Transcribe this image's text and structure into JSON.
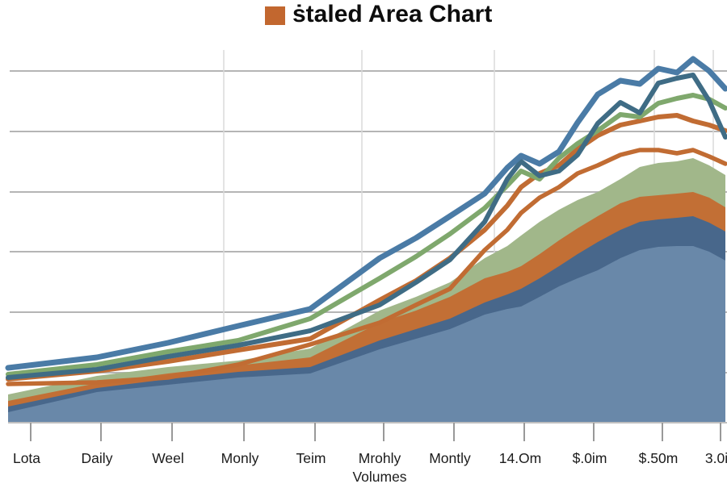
{
  "title": {
    "text": "ṡtaled Area Chart",
    "legend_swatch_color": "#c2672f"
  },
  "x_axis": {
    "axis_title": "Volumes",
    "tick_labels": [
      "Lota",
      "Daily",
      "Weel",
      "Monly",
      "Teim",
      "Mrohly",
      "Montly",
      "14.Om",
      "$.0im",
      "$.50m",
      "3.0i"
    ],
    "tick_x": [
      33,
      120,
      208,
      297,
      385,
      470,
      557,
      644,
      730,
      815,
      887
    ]
  },
  "chart_data": {
    "type": "area",
    "subtype": "stacked-area-with-line-overlays",
    "title": "ṡtaled Area Chart",
    "xlabel": "Volumes",
    "ylabel": "",
    "legend_position": "top-center",
    "grid": "horizontal",
    "x_tick_labels": [
      "Lota",
      "Daily",
      "Weel",
      "Monly",
      "Teim",
      "Mrohly",
      "Montly",
      "14.Om",
      "$.0im",
      "$.50m",
      "3.0i"
    ],
    "xlim": [
      0,
      900
    ],
    "ylim": [
      0,
      470
    ],
    "x": [
      10,
      120,
      208,
      295,
      384,
      470,
      515,
      557,
      600,
      628,
      645,
      668,
      692,
      715,
      740,
      768,
      792,
      815,
      838,
      858,
      878,
      898
    ],
    "stacked_areas": [
      {
        "name": "steel-blue-base-area",
        "color": "#6988a9",
        "stack_top_values": [
          12,
          37,
          46,
          55,
          60,
          90,
          103,
          115,
          133,
          140,
          143,
          155,
          168,
          178,
          188,
          203,
          213,
          217,
          218,
          218,
          211,
          200
        ]
      },
      {
        "name": "dark-blue-band",
        "color": "#48678b",
        "stack_top_values": [
          19,
          42,
          53,
          62,
          68,
          101,
          115,
          128,
          148,
          158,
          165,
          178,
          193,
          208,
          223,
          238,
          248,
          251,
          253,
          255,
          247,
          236
        ]
      },
      {
        "name": "orange-band",
        "color": "#c26f35",
        "stack_top_values": [
          26,
          48,
          60,
          70,
          80,
          123,
          138,
          155,
          178,
          186,
          193,
          208,
          225,
          240,
          255,
          271,
          279,
          281,
          283,
          285,
          278,
          266
        ]
      },
      {
        "name": "green-band",
        "color": "#a1b78a",
        "stack_top_values": [
          34,
          57,
          68,
          76,
          91,
          138,
          155,
          173,
          203,
          218,
          231,
          248,
          263,
          275,
          285,
          301,
          316,
          321,
          323,
          327,
          318,
          306
        ]
      }
    ],
    "lines": [
      {
        "name": "orange-line-lower",
        "color": "#c16c33",
        "width": 5.5,
        "values": [
          47,
          49,
          55,
          71,
          96,
          123,
          145,
          165,
          213,
          238,
          259,
          278,
          291,
          308,
          318,
          331,
          337,
          337,
          333,
          337,
          329,
          320
        ]
      },
      {
        "name": "orange-line-upper",
        "color": "#c16c33",
        "width": 6,
        "values": [
          53,
          63,
          75,
          89,
          103,
          151,
          175,
          203,
          238,
          268,
          291,
          308,
          318,
          338,
          355,
          368,
          373,
          378,
          380,
          373,
          368,
          361
        ]
      },
      {
        "name": "green-line",
        "color": "#7fa86d",
        "width": 6,
        "values": [
          59,
          71,
          87,
          101,
          128,
          178,
          205,
          233,
          265,
          293,
          311,
          301,
          327,
          345,
          361,
          381,
          378,
          395,
          401,
          405,
          400,
          389
        ]
      },
      {
        "name": "teal-blue-line",
        "color": "#3f6c85",
        "width": 6,
        "values": [
          55,
          65,
          81,
          95,
          113,
          145,
          173,
          201,
          248,
          301,
          323,
          305,
          311,
          331,
          370,
          396,
          383,
          420,
          426,
          430,
          398,
          353
        ]
      },
      {
        "name": "blue-line",
        "color": "#4a7ba6",
        "width": 7,
        "values": [
          67,
          80,
          98,
          119,
          140,
          203,
          228,
          255,
          283,
          315,
          330,
          320,
          335,
          371,
          406,
          423,
          419,
          438,
          433,
          450,
          435,
          413
        ]
      }
    ]
  },
  "style": {
    "background": "#ffffff",
    "gridline_color": "#b5b5b5",
    "gridline_y": [
      88,
      163,
      238,
      312,
      387,
      462
    ],
    "vertical_gridline_color": "#dadada",
    "vertical_gridline_x": [
      277,
      448,
      612,
      810,
      883
    ],
    "axis_line_color": "#aaaaaa",
    "tick_color": "#999999",
    "baseline_y": 523,
    "plot_top_y": 62
  }
}
